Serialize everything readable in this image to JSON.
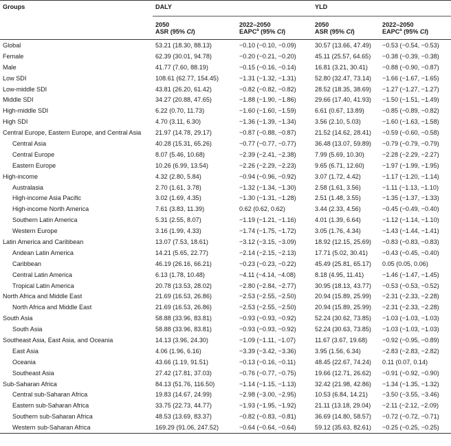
{
  "headers": {
    "groups": "Groups",
    "daly": "DALY",
    "yld": "YLD",
    "year": "2050",
    "asr": "ASR (95% ",
    "ci": "CI",
    "close_paren": ")",
    "range": "2022–2050",
    "eapc": "EAPC",
    "eapc_sup": "a",
    "eapc_ci": " (95% "
  },
  "rows": [
    {
      "group": "Global",
      "indent": false,
      "daly_asr": "53.21 (18.30, 88.13)",
      "daly_eapc": "−0.10 (−0.10, −0.09)",
      "yld_asr": "30.57 (13.66, 47.49)",
      "yld_eapc": "−0.53 (−0.54, −0.53)"
    },
    {
      "group": "Female",
      "indent": false,
      "daly_asr": "62.39 (30.01, 94.78)",
      "daly_eapc": "−0.20 (−0.21, −0.20)",
      "yld_asr": "45.11 (25.57, 64.65)",
      "yld_eapc": "−0.38 (−0.39, −0.38)"
    },
    {
      "group": "Male",
      "indent": false,
      "daly_asr": "41.77 (7.60, 88.19)",
      "daly_eapc": "−0.15 (−0.16, −0.14)",
      "yld_asr": "16.81 (3.21, 30.41)",
      "yld_eapc": "−0.88 (−0.90, −0.87)"
    },
    {
      "group": "Low SDI",
      "indent": false,
      "daly_asr": "108.61 (62.77, 154.45)",
      "daly_eapc": "−1.31 (−1.32, −1.31)",
      "yld_asr": "52.80 (32.47, 73.14)",
      "yld_eapc": "−1.66 (−1.67, −1.65)"
    },
    {
      "group": "Low-middle SDI",
      "indent": false,
      "daly_asr": "43.81 (26.20, 61.42)",
      "daly_eapc": "−0.82 (−0.82, −0.82)",
      "yld_asr": "28.52 (18.35, 38.69)",
      "yld_eapc": "−1.27 (−1.27, −1.27)"
    },
    {
      "group": "Middle SDI",
      "indent": false,
      "daly_asr": "34.27 (20.88, 47.65)",
      "daly_eapc": "−1.88 (−1.90, −1.86)",
      "yld_asr": "29.66 (17.40, 41.93)",
      "yld_eapc": "−1.50 (−1.51, −1.49)"
    },
    {
      "group": "High-middle SDI",
      "indent": false,
      "daly_asr": "6.22 (0.70, 11.73)",
      "daly_eapc": "−1.60 (−1.60, −1.59)",
      "yld_asr": "6.61 (0.67, 13.89)",
      "yld_eapc": "−0.85 (−0.89, −0.82)"
    },
    {
      "group": "High SDI",
      "indent": false,
      "daly_asr": "4.70 (3.11, 6.30)",
      "daly_eapc": "−1.36 (−1.39, −1.34)",
      "yld_asr": "3.56 (2.10, 5.03)",
      "yld_eapc": "−1.60 (−1.63, −1.58)"
    },
    {
      "group": "Central Europe, Eastern Europe, and Central Asia",
      "indent": false,
      "daly_asr": "21.97 (14.78, 29.17)",
      "daly_eapc": "−0.87 (−0.88, −0.87)",
      "yld_asr": "21.52 (14.62, 28.41)",
      "yld_eapc": "−0.59 (−0.60, −0.58)"
    },
    {
      "group": "Central Asia",
      "indent": true,
      "daly_asr": "40.28 (15.31, 65.26)",
      "daly_eapc": "−0.77 (−0.77, −0.77)",
      "yld_asr": "36.48 (13.07, 59.89)",
      "yld_eapc": "−0.79 (−0.79, −0.79)"
    },
    {
      "group": "Central Europe",
      "indent": true,
      "daly_asr": "8.07 (5.46, 10.68)",
      "daly_eapc": "−2.39 (−2.41, −2.38)",
      "yld_asr": "7.99 (5.69, 10.30)",
      "yld_eapc": "−2.28 (−2.29, −2.27)"
    },
    {
      "group": "Eastern Europe",
      "indent": true,
      "daly_asr": "10.26 (6.99, 13.54)",
      "daly_eapc": "−2.26 (−2.29, −2.23)",
      "yld_asr": "9.65 (6.71, 12.60)",
      "yld_eapc": "−1.97 (−1.99, −1.95)"
    },
    {
      "group": "High-income",
      "indent": false,
      "daly_asr": "4.32 (2.80, 5.84)",
      "daly_eapc": "−0.94 (−0.96, −0.92)",
      "yld_asr": "3.07 (1.72, 4.42)",
      "yld_eapc": "−1.17 (−1.20, −1.14)"
    },
    {
      "group": "Australasia",
      "indent": true,
      "daly_asr": "2.70 (1.61, 3.78)",
      "daly_eapc": "−1.32 (−1.34, −1.30)",
      "yld_asr": "2.58 (1.61, 3.56)",
      "yld_eapc": "−1.11 (−1.13, −1.10)"
    },
    {
      "group": "High-income Asia Pacific",
      "indent": true,
      "daly_asr": "3.02 (1.69, 4.35)",
      "daly_eapc": "−1.30 (−1.31, −1.28)",
      "yld_asr": "2.51 (1.48, 3.55)",
      "yld_eapc": "−1.35 (−1.37, −1.33)"
    },
    {
      "group": "High-income North America",
      "indent": true,
      "daly_asr": "7.61 (3.83, 11.39)",
      "daly_eapc": "0.62 (0.62, 0.62)",
      "yld_asr": "3.44 (2.33, 4.56)",
      "yld_eapc": "−0.45 (−0.49, −0.40)"
    },
    {
      "group": "Southern Latin America",
      "indent": true,
      "daly_asr": "5.31 (2.55, 8.07)",
      "daly_eapc": "−1.19 (−1.21, −1.16)",
      "yld_asr": "4.01 (1.39, 6.64)",
      "yld_eapc": "−1.12 (−1.14, −1.10)"
    },
    {
      "group": "Western Europe",
      "indent": true,
      "daly_asr": "3.16 (1.99, 4.33)",
      "daly_eapc": "−1.74 (−1.75, −1.72)",
      "yld_asr": "3.05 (1.76, 4.34)",
      "yld_eapc": "−1.43 (−1.44, −1.41)"
    },
    {
      "group": "Latin America and Caribbean",
      "indent": false,
      "daly_asr": "13.07 (7.53, 18.61)",
      "daly_eapc": "−3.12 (−3.15, −3.09)",
      "yld_asr": "18.92 (12.15, 25.69)",
      "yld_eapc": "−0.83 (−0.83, −0.83)"
    },
    {
      "group": "Andean Latin America",
      "indent": true,
      "daly_asr": "14.21 (5.65, 22.77)",
      "daly_eapc": "−2.14 (−2.15, −2.13)",
      "yld_asr": "17.71 (5.02, 30.41)",
      "yld_eapc": "−0.43 (−0.45, −0.40)"
    },
    {
      "group": "Caribbean",
      "indent": true,
      "daly_asr": "46.19 (26.16, 66.21)",
      "daly_eapc": "−0.23 (−0.23, −0.22)",
      "yld_asr": "45.49 (25.81, 65.17)",
      "yld_eapc": "0.05 (0.05, 0.06)"
    },
    {
      "group": "Central Latin America",
      "indent": true,
      "daly_asr": "6.13 (1.78, 10.48)",
      "daly_eapc": "−4.11 (−4.14, −4.08)",
      "yld_asr": "8.18 (4.95, 11.41)",
      "yld_eapc": "−1.46 (−1.47, −1.45)"
    },
    {
      "group": "Tropical Latin America",
      "indent": true,
      "daly_asr": "20.78 (13.53, 28.02)",
      "daly_eapc": "−2.80 (−2.84, −2.77)",
      "yld_asr": "30.95 (18.13, 43.77)",
      "yld_eapc": "−0.53 (−0.53, −0.52)"
    },
    {
      "group": "North Africa and Middle East",
      "indent": false,
      "daly_asr": "21.69 (16.53, 26.86)",
      "daly_eapc": "−2.53 (−2.55, −2.50)",
      "yld_asr": "20.94 (15.89, 25.99)",
      "yld_eapc": "−2.31 (−2.33, −2.28)"
    },
    {
      "group": "North Africa and Middle East",
      "indent": true,
      "daly_asr": "21.69 (16.53, 26.86)",
      "daly_eapc": "−2.53 (−2.55, −2.50)",
      "yld_asr": "20.94 (15.89, 25.99)",
      "yld_eapc": "−2.31 (−2.33, −2.28)"
    },
    {
      "group": "South Asia",
      "indent": false,
      "daly_asr": "58.88 (33.96, 83.81)",
      "daly_eapc": "−0.93 (−0.93, −0.92)",
      "yld_asr": "52.24 (30.62, 73.85)",
      "yld_eapc": "−1.03 (−1.03, −1.03)"
    },
    {
      "group": "South Asia",
      "indent": true,
      "daly_asr": "58.88 (33.96, 83.81)",
      "daly_eapc": "−0.93 (−0.93, −0.92)",
      "yld_asr": "52.24 (30.63, 73.85)",
      "yld_eapc": "−1.03 (−1.03, −1.03)"
    },
    {
      "group": "Southeast Asia, East Asia, and Oceania",
      "indent": false,
      "daly_asr": "14.13 (3.96, 24.30)",
      "daly_eapc": "−1.09 (−1.11, −1.07)",
      "yld_asr": "11.67 (3.67, 19.68)",
      "yld_eapc": "−0.92 (−0.95, −0.89)"
    },
    {
      "group": "East Asia",
      "indent": true,
      "daly_asr": "4.06 (1.96, 6.16)",
      "daly_eapc": "−3.39 (−3.42, −3.36)",
      "yld_asr": "3.95 (1.56, 6.34)",
      "yld_eapc": "−2.83 (−2.83, −2.82)"
    },
    {
      "group": "Oceania",
      "indent": true,
      "daly_asr": "43.66 (1.19, 91.51)",
      "daly_eapc": "−0.13 (−0.16, −0.11)",
      "yld_asr": "48.45 (22.67, 74.24)",
      "yld_eapc": "0.11 (0.07, 0.14)"
    },
    {
      "group": "Southeast Asia",
      "indent": true,
      "daly_asr": "27.42 (17.81, 37.03)",
      "daly_eapc": "−0.76 (−0.77, −0.75)",
      "yld_asr": "19.66 (12.71, 26.62)",
      "yld_eapc": "−0.91 (−0.92, −0.90)"
    },
    {
      "group": "Sub-Saharan Africa",
      "indent": false,
      "daly_asr": "84.13 (51.76, 116.50)",
      "daly_eapc": "−1.14 (−1.15, −1.13)",
      "yld_asr": "32.42 (21.98, 42.86)",
      "yld_eapc": "−1.34 (−1.35, −1.32)"
    },
    {
      "group": "Central sub-Saharan Africa",
      "indent": true,
      "daly_asr": "19.83 (14.67, 24.99)",
      "daly_eapc": "−2.98 (−3.00, −2.95)",
      "yld_asr": "10.53 (6.84, 14.21)",
      "yld_eapc": "−3.50 (−3.55, −3.46)"
    },
    {
      "group": "Eastern sub-Saharan Africa",
      "indent": true,
      "daly_asr": "33.75 (22.73, 44.77)",
      "daly_eapc": "−1.93 (−1.95, −1.92)",
      "yld_asr": "21.11 (13.18, 29.04)",
      "yld_eapc": "−2.11 (−2.12, −2.09)"
    },
    {
      "group": "Southern sub-Saharan Africa",
      "indent": true,
      "daly_asr": "48.53 (13.69, 83.37)",
      "daly_eapc": "−0.82 (−0.83, −0.81)",
      "yld_asr": "36.69 (14.80, 58.57)",
      "yld_eapc": "−0.72 (−0.72, −0.71)"
    },
    {
      "group": "Western sub-Saharan Africa",
      "indent": true,
      "daly_asr": "169.29 (91.06, 247.52)",
      "daly_eapc": "−0.64 (−0.64, −0.64)",
      "yld_asr": "59.12 (35.63, 82.61)",
      "yld_eapc": "−0.25 (−0.25, −0.25)"
    }
  ]
}
